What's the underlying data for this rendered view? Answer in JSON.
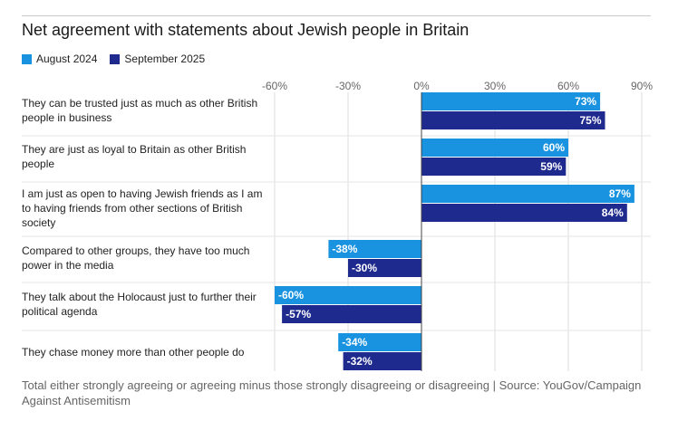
{
  "colors": {
    "august": "#1992e0",
    "september": "#1f2a8f",
    "grid": "#dcdcdc",
    "axis": "#444444",
    "text": "#666666"
  },
  "footer": "Total either strongly agreeing or agreeing minus those strongly disagreeing or disagreeing | Source: YouGov/Campaign Against Antisemitism",
  "chart_data": {
    "type": "bar",
    "orientation": "horizontal",
    "title": "Net agreement with statements about Jewish people in Britain",
    "xlim": [
      -60,
      90
    ],
    "xticks": [
      "-60%",
      "-30%",
      "0%",
      "30%",
      "60%",
      "90%"
    ],
    "xtick_values": [
      -60,
      -30,
      0,
      30,
      60,
      90
    ],
    "grid": true,
    "legend_position": "top-left",
    "categories": [
      "They can be trusted just as much as other British people in business",
      "They are just as loyal to Britain as other British people",
      "I am just as open to having Jewish friends as I am to having friends from other sections of British society",
      "Compared to other groups, they have too much power in the media",
      "They talk about the Holocaust just to further their political agenda",
      "They chase money more than other people do"
    ],
    "series": [
      {
        "name": "August 2024",
        "values": [
          73,
          60,
          87,
          -38,
          -60,
          -34
        ],
        "labels": [
          "73%",
          "60%",
          "87%",
          "-38%",
          "-60%",
          "-34%"
        ]
      },
      {
        "name": "September 2025",
        "values": [
          75,
          59,
          84,
          -30,
          -57,
          -32
        ],
        "labels": [
          "75%",
          "59%",
          "84%",
          "-30%",
          "-57%",
          "-32%"
        ]
      }
    ]
  }
}
